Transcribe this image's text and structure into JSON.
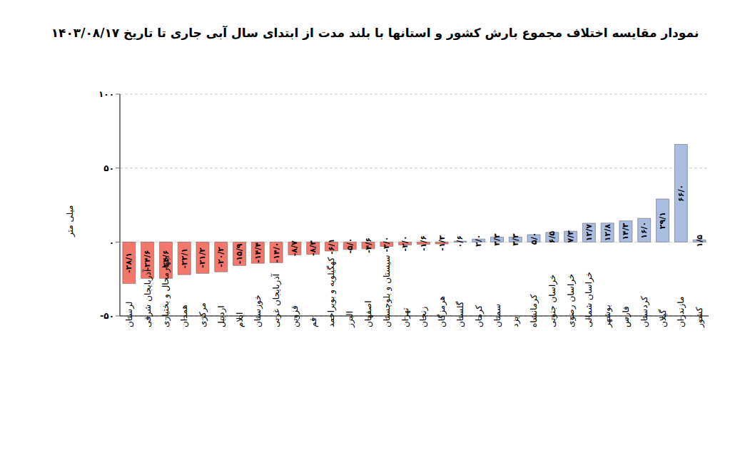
{
  "chart_data": {
    "type": "bar",
    "title": "نمودار مقایسه اختلاف مجموع بارش کشور و استانها با بلند مدت از ابتدای سال آبی جاری تا تاریخ ۱۴۰۳/۰۸/۱۷",
    "y_label": "میلی متر",
    "categories": [
      "لرستان",
      "آذربایجان شرقی",
      "چهارمحال و بختیاری",
      "همدان",
      "مرکزی",
      "اردبیل",
      "ایلام",
      "خوزستان",
      "آذربایجان غربی",
      "قزوین",
      "قم",
      "کهگیلویه و بویراحمد",
      "البرز",
      "اصفهان",
      "سیستان و بلوچستان",
      "تهران",
      "زنجان",
      "هرمزگان",
      "گلستان",
      "کرمان",
      "سمنان",
      "یزد",
      "کرمانشاه",
      "خراسان جنوبی",
      "خراسان رضوی",
      "خراسان شمالی",
      "بوشهر",
      "فارس",
      "کردستان",
      "گیلان",
      "مازندران",
      "کشور"
    ],
    "values": [
      -28.1,
      -24.6,
      -24.6,
      -22.1,
      -21.2,
      -20.2,
      -15.9,
      -14.4,
      -14.0,
      -8.7,
      -8.3,
      -6.1,
      -5.0,
      -4.6,
      -3.0,
      -2.0,
      -1.6,
      -1.3,
      0.6,
      2.0,
      3.3,
      3.3,
      5.0,
      6.5,
      7.3,
      12.7,
      12.8,
      14.3,
      16.0,
      29.1,
      66.0,
      1.5
    ],
    "value_labels": [
      "-۲۸/۱",
      "-۲۴/۶",
      "-۲۴/۶",
      "-۲۲/۱",
      "-۲۱/۲",
      "-۲۰/۲",
      "-۱۵/۹",
      "-۱۴/۴",
      "-۱۴/۰",
      "-۸/۷",
      "-۸/۳",
      "-۶/۱",
      "-۵/۰",
      "-۴/۶",
      "-۳/۰",
      "-۲/۰",
      "-۱/۶",
      "-۱/۳",
      "۰/۶",
      "۲/۰",
      "۳/۳",
      "۳/۳",
      "۵/۰",
      "۶/۵",
      "۷/۳",
      "۱۲/۷",
      "۱۲/۸",
      "۱۴/۳",
      "۱۶/۰",
      "۲۹/۱",
      "۶۶/۰",
      "۱/۵"
    ],
    "colors": [
      "#f4776b",
      "#f4776b",
      "#f4776b",
      "#f4776b",
      "#f4776b",
      "#f4776b",
      "#f4776b",
      "#f4776b",
      "#f4776b",
      "#f4776b",
      "#f4776b",
      "#f4776b",
      "#f4776b",
      "#f4776b",
      "#f4776b",
      "#f4776b",
      "#f4776b",
      "#f4776b",
      "#aabde0",
      "#aabde0",
      "#aabde0",
      "#aabde0",
      "#aabde0",
      "#aabde0",
      "#aabde0",
      "#aabde0",
      "#aabde0",
      "#aabde0",
      "#aabde0",
      "#aabde0",
      "#aabde0",
      "#aabde0"
    ],
    "ylim": [
      -50,
      100
    ],
    "yticks": [
      {
        "value": -50,
        "label": "-۵۰"
      },
      {
        "value": 0,
        "label": "۰"
      },
      {
        "value": 50,
        "label": "۵۰"
      },
      {
        "value": 100,
        "label": "۱۰۰"
      }
    ],
    "grid": true,
    "data_labels": true
  }
}
